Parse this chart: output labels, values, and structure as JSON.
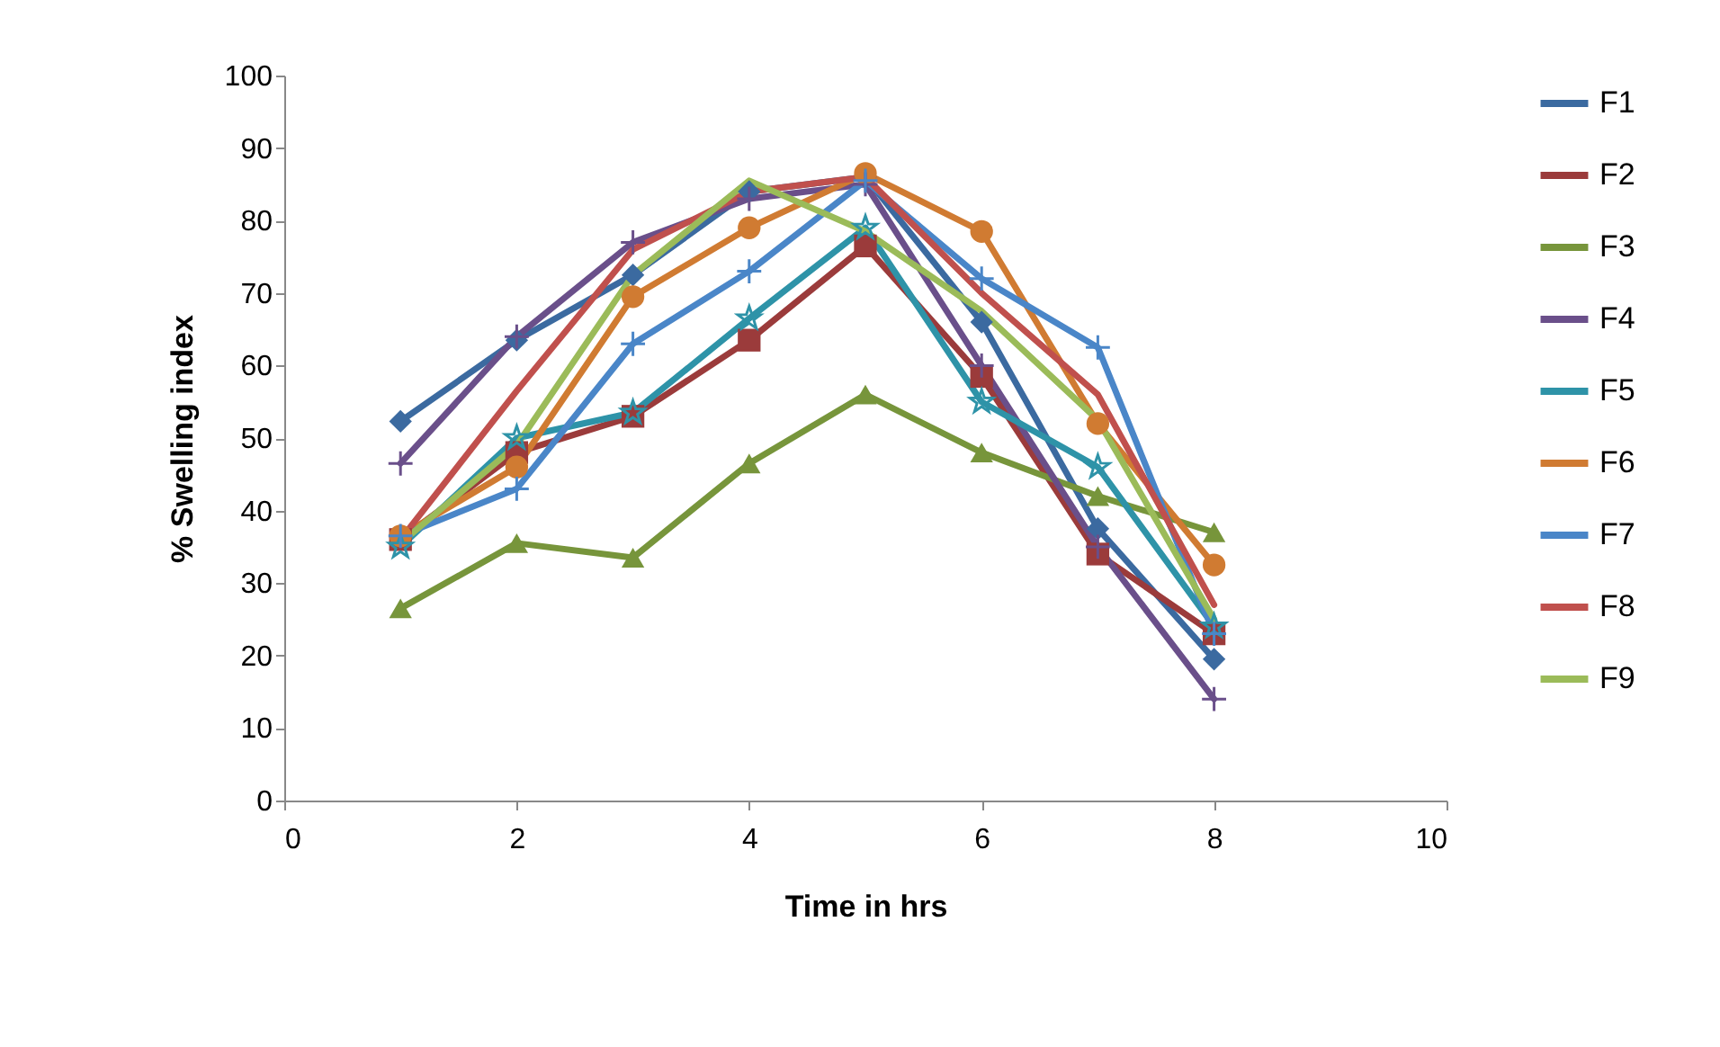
{
  "chart_data": {
    "type": "line",
    "xlabel": "Time in hrs",
    "ylabel": "% Swelling index",
    "x": [
      1,
      2,
      3,
      4,
      5,
      6,
      7,
      8
    ],
    "xlim": [
      0,
      10
    ],
    "xticks": [
      0,
      2,
      4,
      6,
      8,
      10
    ],
    "ylim": [
      0,
      100
    ],
    "yticks": [
      0,
      10,
      20,
      30,
      40,
      50,
      60,
      70,
      80,
      90,
      100
    ],
    "grid": false,
    "legend": "right",
    "series": [
      {
        "name": "F1",
        "color": "#3b6aa0",
        "marker": "diamond",
        "values": [
          52.3,
          63.5,
          72.5,
          84,
          86,
          66,
          37.5,
          19.5
        ]
      },
      {
        "name": "F2",
        "color": "#9b3b3b",
        "marker": "square",
        "values": [
          36,
          48,
          53,
          63.5,
          76.5,
          58.5,
          34,
          23
        ]
      },
      {
        "name": "F3",
        "color": "#77953b",
        "marker": "triangle",
        "values": [
          26.5,
          35.5,
          33.5,
          46.5,
          56,
          48,
          42,
          37
        ]
      },
      {
        "name": "F4",
        "color": "#6a4f8a",
        "marker": "cross",
        "values": [
          46.5,
          64,
          77,
          83,
          85,
          60,
          35,
          14
        ]
      },
      {
        "name": "F5",
        "color": "#2e93a8",
        "marker": "star",
        "values": [
          35,
          50,
          53.5,
          66.5,
          79,
          55,
          46,
          24
        ]
      },
      {
        "name": "F6",
        "color": "#d07b32",
        "marker": "circle",
        "values": [
          36.5,
          46,
          69.5,
          79,
          86.5,
          78.5,
          52,
          32.5
        ]
      },
      {
        "name": "F7",
        "color": "#4a86c8",
        "marker": "cross",
        "values": [
          36.5,
          43,
          63,
          73,
          85.5,
          72,
          62.5,
          23
        ]
      },
      {
        "name": "F8",
        "color": "#c0504d",
        "marker": "none",
        "values": [
          36,
          56.5,
          76,
          84,
          86,
          70,
          56,
          27
        ]
      },
      {
        "name": "F9",
        "color": "#9bbb59",
        "marker": "none",
        "values": [
          35.5,
          49,
          72.5,
          85.5,
          78.5,
          67.5,
          52.5,
          25
        ]
      }
    ]
  }
}
